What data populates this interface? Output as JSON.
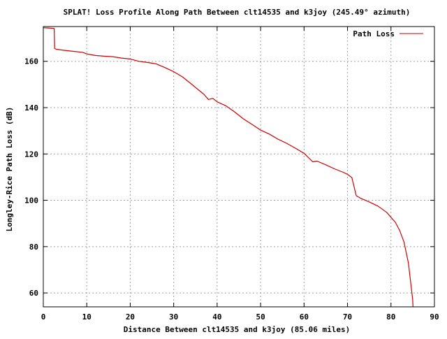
{
  "chart_data": {
    "type": "line",
    "title": "SPLAT! Loss Profile Along Path Between clt14535 and k3joy (245.49° azimuth)",
    "xlabel": "Distance Between clt14535 and k3joy (85.06 miles)",
    "ylabel": "Longley-Rice Path Loss (dB)",
    "xlim": [
      0,
      90
    ],
    "ylim": [
      54,
      175
    ],
    "x_ticks": [
      0,
      10,
      20,
      30,
      40,
      50,
      60,
      70,
      80,
      90
    ],
    "y_ticks": [
      60,
      80,
      100,
      120,
      140,
      160
    ],
    "grid": true,
    "legend_position": "top-right",
    "series": [
      {
        "name": "Path Loss",
        "color": "#cc0000",
        "x": [
          0,
          1,
          2.5,
          2.6,
          3,
          5,
          7,
          9,
          10,
          12,
          14,
          16,
          18,
          20,
          22,
          24,
          26,
          28,
          30,
          32,
          34,
          36,
          37,
          38,
          39,
          40,
          42,
          44,
          46,
          48,
          50,
          52,
          54,
          56,
          58,
          60,
          62,
          63,
          65,
          67,
          69,
          70,
          71,
          72,
          73,
          75,
          77,
          79,
          81,
          82,
          83,
          84,
          84.5,
          85,
          85.06
        ],
        "y": [
          174.5,
          174.4,
          174.2,
          165.5,
          165.2,
          164.7,
          164.3,
          163.9,
          163.2,
          162.5,
          162.2,
          162.0,
          161.4,
          161.0,
          160.0,
          159.5,
          158.9,
          157.3,
          155.5,
          153.3,
          150.3,
          147.2,
          145.7,
          143.5,
          144.0,
          142.5,
          140.8,
          138.2,
          135.2,
          132.8,
          130.3,
          128.6,
          126.4,
          124.6,
          122.5,
          120.3,
          116.6,
          116.9,
          115.3,
          113.6,
          112.1,
          111.2,
          109.8,
          102.0,
          100.9,
          99.3,
          97.5,
          94.8,
          90.5,
          87.0,
          82.0,
          73.0,
          65.0,
          57.0,
          54.0
        ]
      }
    ]
  }
}
